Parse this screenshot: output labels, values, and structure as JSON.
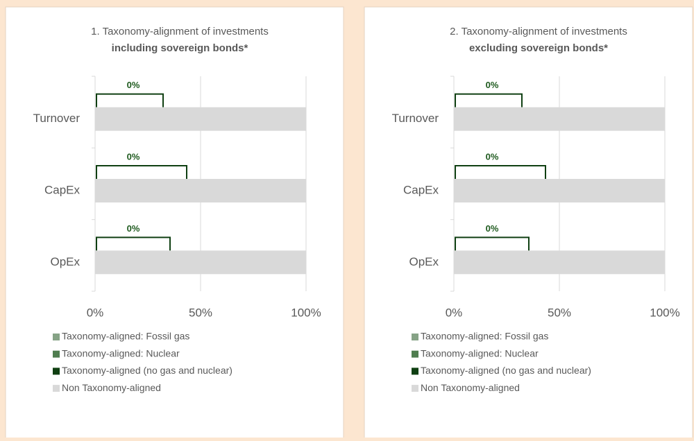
{
  "chart_data": [
    {
      "type": "bar",
      "orientation": "horizontal",
      "stacked": true,
      "title": "1. Taxonomy-alignment of investments",
      "subtitle": "including sovereign bonds*",
      "categories": [
        "Turnover",
        "CapEx",
        "OpEx"
      ],
      "series": [
        {
          "name": "Taxonomy-aligned: Fossil gas",
          "color": "#86a386",
          "values": [
            0,
            0,
            0
          ]
        },
        {
          "name": "Taxonomy-aligned: Nuclear",
          "color": "#4f7d4f",
          "values": [
            0,
            0,
            0
          ]
        },
        {
          "name": "Taxonomy-aligned (no gas and nuclear)",
          "color": "#0f3f12",
          "values": [
            0,
            0,
            0
          ],
          "value_labels": [
            "0%",
            "0%",
            "0%"
          ]
        },
        {
          "name": "Non Taxonomy-aligned",
          "color": "#d9d9d9",
          "values": [
            100,
            100,
            100
          ]
        }
      ],
      "xlim": [
        0,
        100
      ],
      "xticks": [
        {
          "value": 0,
          "label": "0%"
        },
        {
          "value": 50,
          "label": "50%"
        },
        {
          "value": 100,
          "label": "100%"
        }
      ],
      "grid": true,
      "legend": "bottom"
    },
    {
      "type": "bar",
      "orientation": "horizontal",
      "stacked": true,
      "title": "2. Taxonomy-alignment of investments",
      "subtitle": "excluding sovereign bonds*",
      "categories": [
        "Turnover",
        "CapEx",
        "OpEx"
      ],
      "series": [
        {
          "name": "Taxonomy-aligned: Fossil gas",
          "color": "#86a386",
          "values": [
            0,
            0,
            0
          ]
        },
        {
          "name": "Taxonomy-aligned: Nuclear",
          "color": "#4f7d4f",
          "values": [
            0,
            0,
            0
          ]
        },
        {
          "name": "Taxonomy-aligned (no gas and nuclear)",
          "color": "#0f3f12",
          "values": [
            0,
            0,
            0
          ],
          "value_labels": [
            "0%",
            "0%",
            "0%"
          ]
        },
        {
          "name": "Non Taxonomy-aligned",
          "color": "#d9d9d9",
          "values": [
            100,
            100,
            100
          ]
        }
      ],
      "xlim": [
        0,
        100
      ],
      "xticks": [
        {
          "value": 0,
          "label": "0%"
        },
        {
          "value": 50,
          "label": "50%"
        },
        {
          "value": 100,
          "label": "100%"
        }
      ],
      "grid": true,
      "legend": "bottom"
    }
  ]
}
